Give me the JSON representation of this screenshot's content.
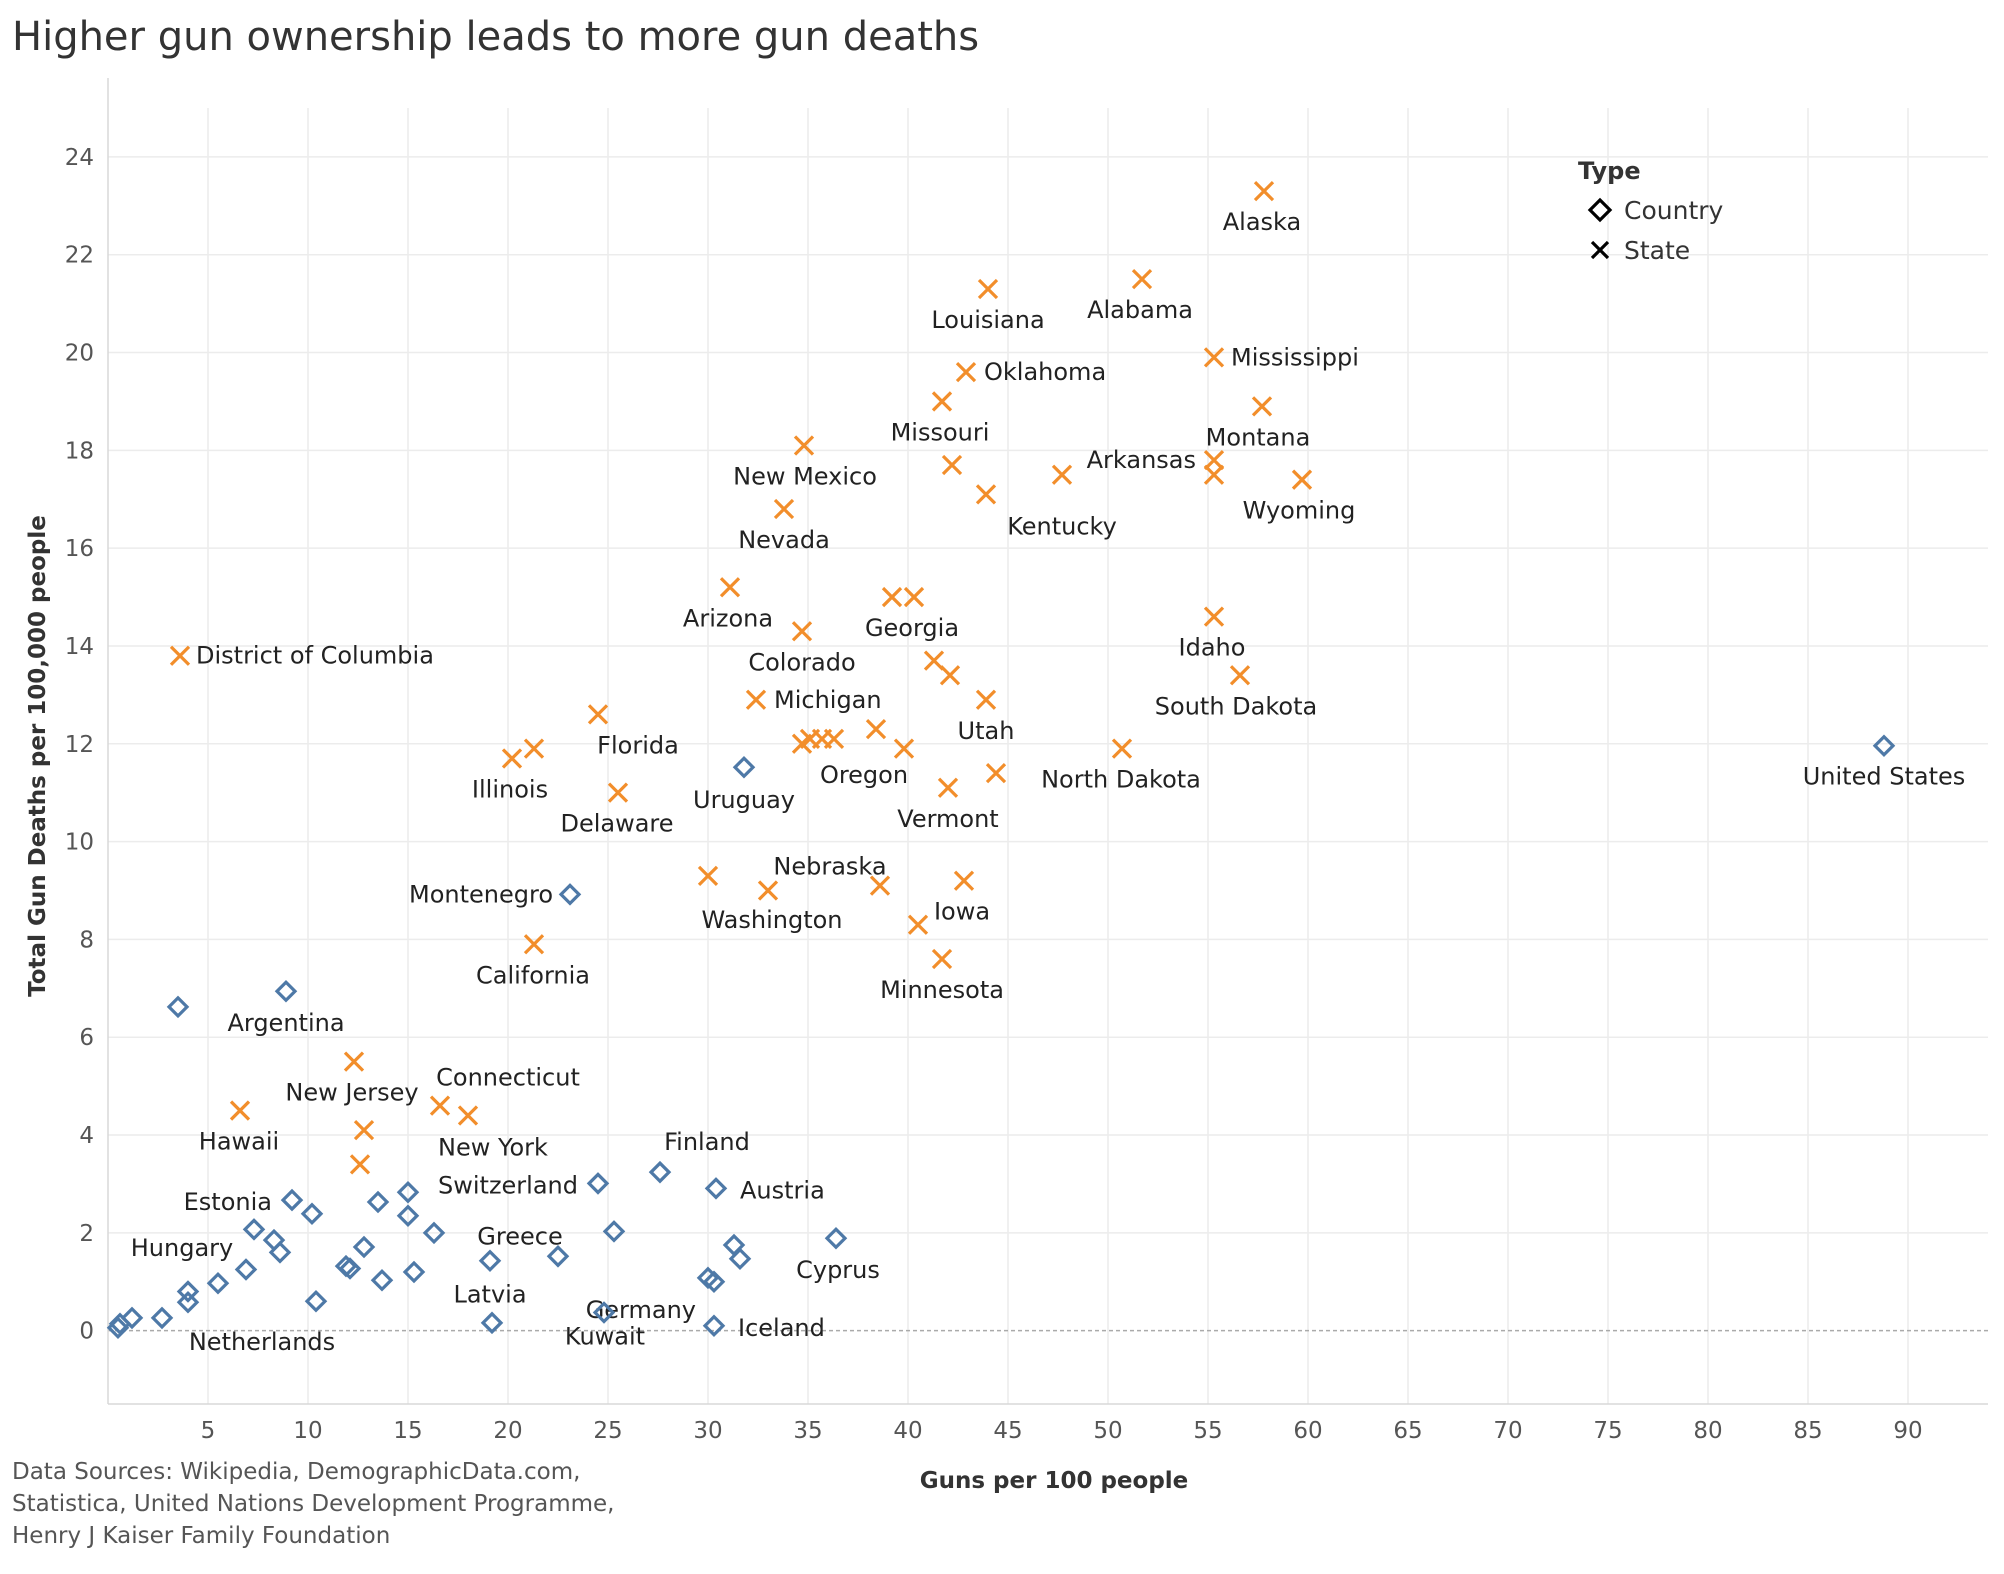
{
  "chart_data": {
    "type": "scatter",
    "title": "Higher gun ownership leads to more gun deaths",
    "xlabel": "Guns per 100 people",
    "ylabel": "Total Gun Deaths per 100,000 people",
    "xlim": [
      0,
      94
    ],
    "ylim": [
      -1.5,
      25
    ],
    "x_ticks": [
      5,
      10,
      15,
      20,
      25,
      30,
      35,
      40,
      45,
      50,
      55,
      60,
      65,
      70,
      75,
      80,
      85,
      90
    ],
    "y_ticks": [
      0,
      2,
      4,
      6,
      8,
      10,
      12,
      14,
      16,
      18,
      20,
      22,
      24
    ],
    "grid": true,
    "legend": {
      "title": "Type",
      "position": "top-right",
      "entries": [
        {
          "label": "Country",
          "marker": "diamond"
        },
        {
          "label": "State",
          "marker": "cross"
        }
      ]
    },
    "colors": {
      "Country": "#4e79a7",
      "State": "#f28e2b"
    },
    "series": [
      {
        "name": "Country",
        "marker": "diamond",
        "points": [
          {
            "x": 88.8,
            "y": 11.96,
            "label": "United States"
          },
          {
            "x": 31.8,
            "y": 11.52,
            "label": "Uruguay"
          },
          {
            "x": 23.1,
            "y": 8.92,
            "label": "Montenegro"
          },
          {
            "x": 8.9,
            "y": 6.94,
            "label": "Argentina"
          },
          {
            "x": 3.5,
            "y": 6.62,
            "label": ""
          },
          {
            "x": 27.6,
            "y": 3.24,
            "label": "Finland"
          },
          {
            "x": 30.4,
            "y": 2.91,
            "label": "Austria"
          },
          {
            "x": 24.5,
            "y": 3.01,
            "label": "Switzerland"
          },
          {
            "x": 36.4,
            "y": 1.89,
            "label": "Cyprus"
          },
          {
            "x": 9.2,
            "y": 2.67,
            "label": "Estonia"
          },
          {
            "x": 10.2,
            "y": 2.39,
            "label": ""
          },
          {
            "x": 13.5,
            "y": 2.63,
            "label": ""
          },
          {
            "x": 15.0,
            "y": 2.83,
            "label": ""
          },
          {
            "x": 15.0,
            "y": 2.35,
            "label": ""
          },
          {
            "x": 16.3,
            "y": 2.0,
            "label": ""
          },
          {
            "x": 7.3,
            "y": 2.07,
            "label": ""
          },
          {
            "x": 8.3,
            "y": 1.85,
            "label": ""
          },
          {
            "x": 8.6,
            "y": 1.6,
            "label": ""
          },
          {
            "x": 6.9,
            "y": 1.25,
            "label": ""
          },
          {
            "x": 12.8,
            "y": 1.71,
            "label": ""
          },
          {
            "x": 11.9,
            "y": 1.32,
            "label": ""
          },
          {
            "x": 12.1,
            "y": 1.27,
            "label": ""
          },
          {
            "x": 13.7,
            "y": 1.03,
            "label": ""
          },
          {
            "x": 15.3,
            "y": 1.2,
            "label": ""
          },
          {
            "x": 19.1,
            "y": 1.43,
            "label": "Latvia"
          },
          {
            "x": 22.5,
            "y": 1.52,
            "label": "Greece"
          },
          {
            "x": 25.3,
            "y": 2.03,
            "label": ""
          },
          {
            "x": 30.0,
            "y": 1.08,
            "label": "Germany"
          },
          {
            "x": 30.3,
            "y": 1.0,
            "label": ""
          },
          {
            "x": 31.3,
            "y": 1.75,
            "label": ""
          },
          {
            "x": 31.6,
            "y": 1.47,
            "label": ""
          },
          {
            "x": 5.5,
            "y": 0.97,
            "label": "Hungary"
          },
          {
            "x": 4.0,
            "y": 0.8,
            "label": ""
          },
          {
            "x": 4.0,
            "y": 0.58,
            "label": ""
          },
          {
            "x": 10.4,
            "y": 0.6,
            "label": ""
          },
          {
            "x": 2.7,
            "y": 0.26,
            "label": "Netherlands"
          },
          {
            "x": 1.2,
            "y": 0.26,
            "label": ""
          },
          {
            "x": 0.6,
            "y": 0.14,
            "label": ""
          },
          {
            "x": 0.5,
            "y": 0.06,
            "label": ""
          },
          {
            "x": 19.2,
            "y": 0.16,
            "label": ""
          },
          {
            "x": 24.8,
            "y": 0.37,
            "label": "Kuwait"
          },
          {
            "x": 30.3,
            "y": 0.1,
            "label": "Iceland"
          }
        ]
      },
      {
        "name": "State",
        "marker": "cross",
        "points": [
          {
            "x": 57.8,
            "y": 23.3,
            "label": "Alaska"
          },
          {
            "x": 51.7,
            "y": 21.5,
            "label": "Alabama"
          },
          {
            "x": 44.0,
            "y": 21.3,
            "label": "Louisiana"
          },
          {
            "x": 55.3,
            "y": 19.9,
            "label": "Mississippi"
          },
          {
            "x": 42.9,
            "y": 19.6,
            "label": "Oklahoma"
          },
          {
            "x": 57.7,
            "y": 18.9,
            "label": "Montana"
          },
          {
            "x": 41.7,
            "y": 19.0,
            "label": "Missouri"
          },
          {
            "x": 34.8,
            "y": 18.1,
            "label": "New Mexico"
          },
          {
            "x": 55.3,
            "y": 17.8,
            "label": "Arkansas"
          },
          {
            "x": 55.3,
            "y": 17.5,
            "label": ""
          },
          {
            "x": 59.7,
            "y": 17.4,
            "label": "Wyoming"
          },
          {
            "x": 47.7,
            "y": 17.5,
            "label": ""
          },
          {
            "x": 42.2,
            "y": 17.7,
            "label": ""
          },
          {
            "x": 43.9,
            "y": 17.1,
            "label": "Kentucky"
          },
          {
            "x": 33.8,
            "y": 16.8,
            "label": "Nevada"
          },
          {
            "x": 31.1,
            "y": 15.2,
            "label": "Arizona"
          },
          {
            "x": 39.2,
            "y": 15.0,
            "label": ""
          },
          {
            "x": 40.3,
            "y": 15.0,
            "label": "Georgia"
          },
          {
            "x": 55.3,
            "y": 14.6,
            "label": "Idaho"
          },
          {
            "x": 34.7,
            "y": 14.3,
            "label": "Colorado"
          },
          {
            "x": 3.6,
            "y": 13.8,
            "label": "District of Columbia"
          },
          {
            "x": 41.3,
            "y": 13.7,
            "label": ""
          },
          {
            "x": 42.1,
            "y": 13.4,
            "label": ""
          },
          {
            "x": 56.6,
            "y": 13.4,
            "label": "South Dakota"
          },
          {
            "x": 32.4,
            "y": 12.9,
            "label": "Michigan"
          },
          {
            "x": 43.9,
            "y": 12.9,
            "label": "Utah"
          },
          {
            "x": 24.5,
            "y": 12.6,
            "label": "Florida"
          },
          {
            "x": 38.4,
            "y": 12.3,
            "label": ""
          },
          {
            "x": 35.1,
            "y": 12.1,
            "label": ""
          },
          {
            "x": 35.7,
            "y": 12.1,
            "label": ""
          },
          {
            "x": 36.3,
            "y": 12.1,
            "label": ""
          },
          {
            "x": 34.7,
            "y": 12.0,
            "label": "Oregon"
          },
          {
            "x": 39.8,
            "y": 11.9,
            "label": ""
          },
          {
            "x": 50.7,
            "y": 11.9,
            "label": "North Dakota"
          },
          {
            "x": 21.3,
            "y": 11.9,
            "label": ""
          },
          {
            "x": 20.2,
            "y": 11.7,
            "label": "Illinois"
          },
          {
            "x": 44.4,
            "y": 11.4,
            "label": ""
          },
          {
            "x": 42.0,
            "y": 11.1,
            "label": "Vermont"
          },
          {
            "x": 25.5,
            "y": 11.0,
            "label": "Delaware"
          },
          {
            "x": 30.0,
            "y": 9.3,
            "label": "Washington"
          },
          {
            "x": 42.8,
            "y": 9.2,
            "label": "Iowa"
          },
          {
            "x": 38.6,
            "y": 9.1,
            "label": "Nebraska"
          },
          {
            "x": 33.0,
            "y": 9.0,
            "label": ""
          },
          {
            "x": 40.5,
            "y": 8.3,
            "label": ""
          },
          {
            "x": 21.3,
            "y": 7.9,
            "label": "California"
          },
          {
            "x": 41.7,
            "y": 7.6,
            "label": "Minnesota"
          },
          {
            "x": 12.3,
            "y": 5.5,
            "label": "New Jersey"
          },
          {
            "x": 16.6,
            "y": 4.6,
            "label": "Connecticut"
          },
          {
            "x": 6.6,
            "y": 4.5,
            "label": "Hawaii"
          },
          {
            "x": 18.0,
            "y": 4.4,
            "label": "New York"
          },
          {
            "x": 12.8,
            "y": 4.1,
            "label": ""
          },
          {
            "x": 12.6,
            "y": 3.4,
            "label": ""
          }
        ]
      }
    ]
  },
  "source_note": {
    "line1": "Data Sources: Wikipedia, DemographicData.com,",
    "line2": "Statistica, United Nations Development Programme,",
    "line3": "Henry J Kaiser Family Foundation"
  }
}
